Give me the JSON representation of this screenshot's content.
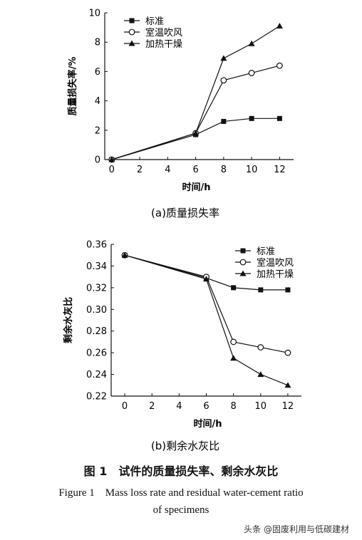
{
  "figure": {
    "caption_cn": "图 1　试件的质量损失率、剩余水灰比",
    "caption_en_line1": "Figure 1　Mass loss rate and residual water-cement ratio",
    "caption_en_line2": "of specimens",
    "watermark": "头条 @固废利用与低碳建材"
  },
  "chart_data": [
    {
      "type": "line",
      "subtitle": "(a)质量损失率",
      "xlabel": "时间/h",
      "ylabel": "质量损失率/%",
      "xlim": [
        -0.5,
        13
      ],
      "ylim": [
        0,
        10
      ],
      "xticks": [
        0,
        2,
        4,
        6,
        8,
        10,
        12
      ],
      "yticks": [
        0,
        2,
        4,
        6,
        8,
        10
      ],
      "yticklabels": [
        "0",
        "2",
        "4",
        "6",
        "8",
        "10"
      ],
      "legend_position": "top-left",
      "series": [
        {
          "name": "标准",
          "marker": "square",
          "x": [
            0,
            6,
            8,
            10,
            12
          ],
          "y": [
            0,
            1.7,
            2.6,
            2.8,
            2.8
          ]
        },
        {
          "name": "室温吹风",
          "marker": "circle",
          "x": [
            0,
            6,
            8,
            10,
            12
          ],
          "y": [
            0,
            1.8,
            5.4,
            5.9,
            6.4
          ]
        },
        {
          "name": "加热干燥",
          "marker": "triangle",
          "x": [
            0,
            6,
            8,
            10,
            12
          ],
          "y": [
            0,
            1.8,
            6.9,
            7.9,
            9.1
          ]
        }
      ]
    },
    {
      "type": "line",
      "subtitle": "(b)剩余水灰比",
      "xlabel": "时间/h",
      "ylabel": "剩余水灰比",
      "xlim": [
        -1,
        13
      ],
      "ylim": [
        0.22,
        0.36
      ],
      "xticks": [
        0,
        2,
        4,
        6,
        8,
        10,
        12
      ],
      "yticks": [
        0.22,
        0.24,
        0.26,
        0.28,
        0.3,
        0.32,
        0.34,
        0.36
      ],
      "yticklabels": [
        "0.22",
        "0.24",
        "0.26",
        "0.28",
        "0.30",
        "0.32",
        "0.34",
        "0.36"
      ],
      "legend_position": "top-right",
      "series": [
        {
          "name": "标准",
          "marker": "square",
          "x": [
            0,
            6,
            8,
            10,
            12
          ],
          "y": [
            0.35,
            0.329,
            0.32,
            0.318,
            0.318
          ]
        },
        {
          "name": "室温吹风",
          "marker": "circle",
          "x": [
            0,
            6,
            8,
            10,
            12
          ],
          "y": [
            0.35,
            0.33,
            0.27,
            0.265,
            0.26
          ]
        },
        {
          "name": "加热干燥",
          "marker": "triangle",
          "x": [
            0,
            6,
            8,
            10,
            12
          ],
          "y": [
            0.35,
            0.328,
            0.255,
            0.24,
            0.23
          ]
        }
      ]
    }
  ]
}
